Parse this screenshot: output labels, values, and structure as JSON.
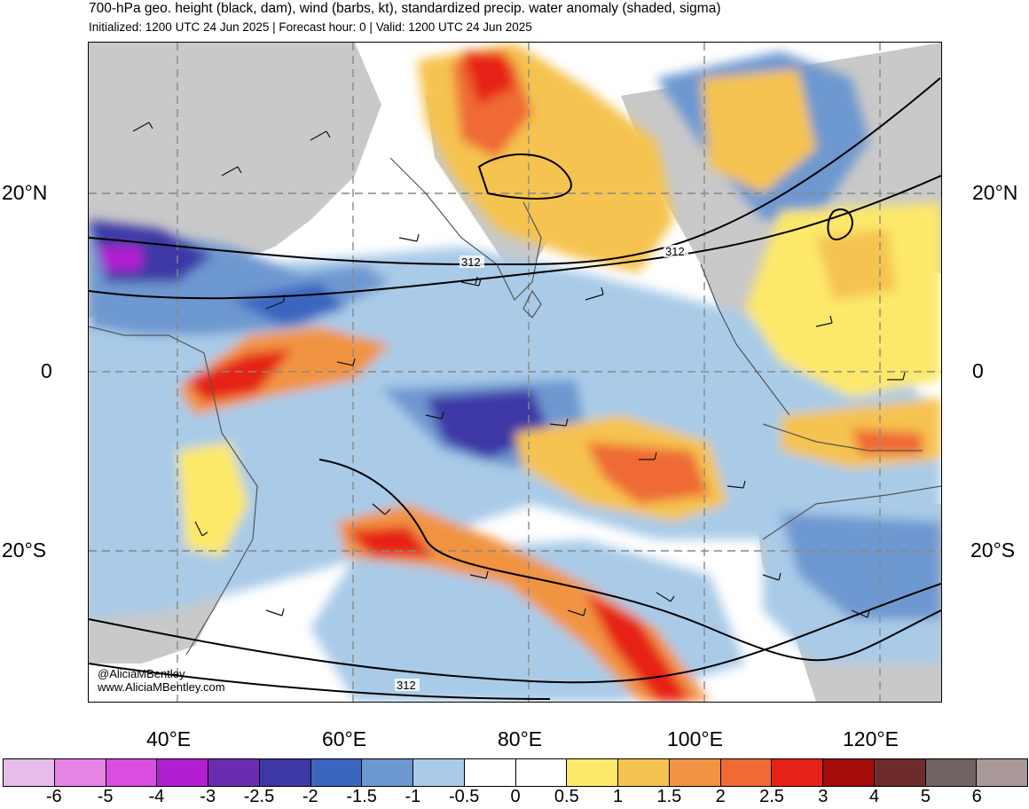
{
  "header": {
    "title": "700-hPa geo. height (black, dam), wind (barbs, kt), standardized precip. water anomaly (shaded, sigma)",
    "subtitle": "Initialized: 1200 UTC 24 Jun 2025 | Forecast hour: 0 | Valid: 1200 UTC 24 Jun 2025"
  },
  "map": {
    "lat_labels_left": [
      "20°N",
      "0",
      "20°S"
    ],
    "lat_labels_right": [
      "20°N",
      "0",
      "20°S"
    ],
    "lon_labels": [
      "40°E",
      "60°E",
      "80°E",
      "100°E",
      "120°E"
    ],
    "contour_labels": [
      "312",
      "312",
      "312"
    ],
    "credit_handle": "@AliciaMBentley",
    "credit_site": "www.AliciaMBentley.com",
    "layers": [
      "geopotential-height-contours",
      "wind-barbs",
      "precip-water-anomaly-shading",
      "coastlines",
      "lat-lon-grid"
    ]
  },
  "colorbar": {
    "labels": [
      "-6",
      "-5",
      "-4",
      "-3",
      "-2.5",
      "-2",
      "-1.5",
      "-1",
      "-0.5",
      "0",
      "0.5",
      "1",
      "1.5",
      "2",
      "2.5",
      "3",
      "4",
      "5",
      "6"
    ],
    "colors": [
      "#e8bce8",
      "#e584e5",
      "#d94ee0",
      "#b21fd3",
      "#6a2cb0",
      "#3d38a6",
      "#3b66c0",
      "#6e98d0",
      "#a9cbe8",
      "#ffffff",
      "#ffffff",
      "#fde86a",
      "#f5c34f",
      "#f19443",
      "#ef6a35",
      "#e62116",
      "#a40c0c",
      "#6e2b2b",
      "#716363",
      "#a89898"
    ]
  }
}
